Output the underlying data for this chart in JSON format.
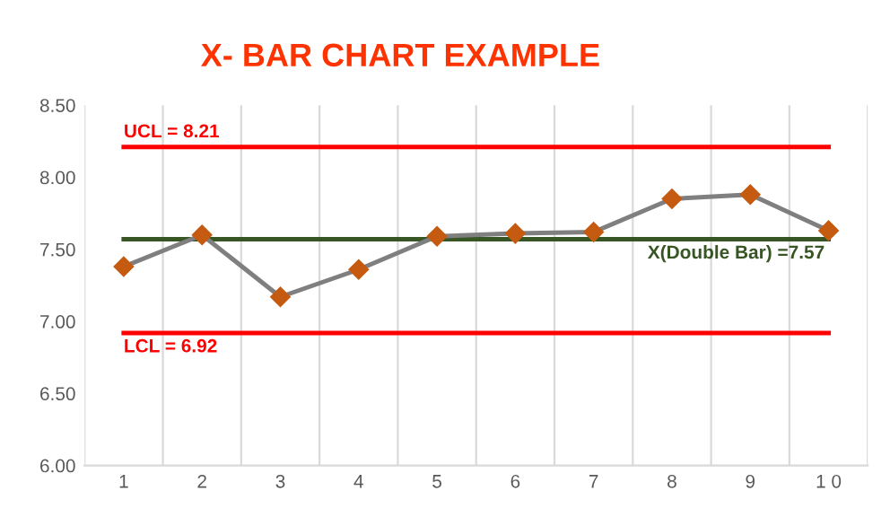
{
  "chart_data": {
    "type": "line",
    "title": "X- BAR CHART EXAMPLE",
    "categories": [
      "1",
      "2",
      "3",
      "4",
      "5",
      "6",
      "7",
      "8",
      "9",
      "1 0"
    ],
    "series": [
      {
        "color": "#7f7f7f",
        "values": [
          7.38,
          7.6,
          7.17,
          7.36,
          7.59,
          7.61,
          7.62,
          7.85,
          7.88,
          7.63
        ]
      }
    ],
    "marker": "diamond",
    "line_style": "solid",
    "ylim": [
      6.0,
      8.5
    ],
    "yticks": [
      {
        "value": 6.0,
        "label": "6.00"
      },
      {
        "value": 6.5,
        "label": "6.50"
      },
      {
        "value": 7.0,
        "label": "7.00"
      },
      {
        "value": 7.5,
        "label": "7.50"
      },
      {
        "value": 8.0,
        "label": "8.00"
      },
      {
        "value": 8.5,
        "label": "8.50"
      }
    ],
    "grid": "x",
    "ref_lines": [
      {
        "axis": "y",
        "value": 8.21,
        "label": "UCL = 8.21",
        "color": "#ff0000"
      },
      {
        "axis": "y",
        "value": 7.57,
        "label": "X(Double Bar) =7.57",
        "color": "#375623"
      },
      {
        "axis": "y",
        "value": 6.92,
        "label": "LCL = 6.92",
        "color": "#ff0000"
      }
    ]
  }
}
